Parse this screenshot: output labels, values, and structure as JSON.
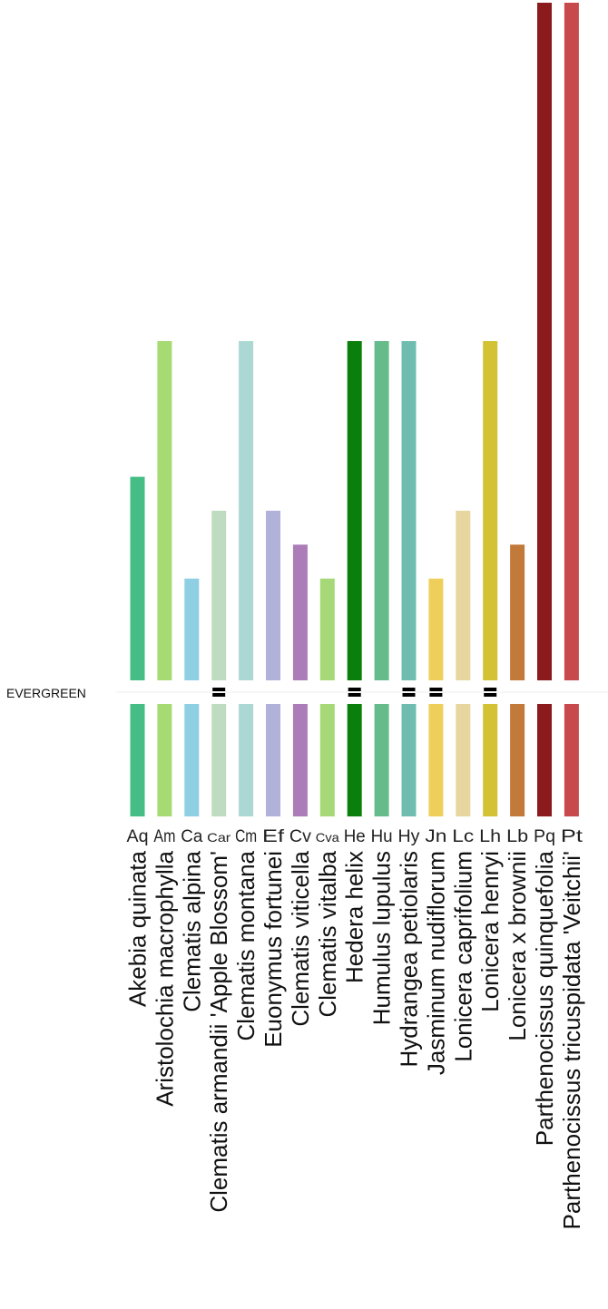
{
  "chart_data": {
    "type": "bar",
    "row_label": "EVERGREEN",
    "ylim": [
      0,
      10
    ],
    "grid": false,
    "legend": "none",
    "series": [
      {
        "abbr": "Aq",
        "name": "Akebia quinata",
        "value": 6,
        "evergreen": false,
        "color": "#45bd85"
      },
      {
        "abbr": "Am",
        "name": "Aristolochia macrophylla",
        "value": 10,
        "evergreen": false,
        "color": "#a6db74"
      },
      {
        "abbr": "Ca",
        "name": "Clematis alpina",
        "value": 3,
        "evergreen": false,
        "color": "#8ecfe4"
      },
      {
        "abbr": "Car",
        "name": "Clematis armandii 'Apple Blossom'",
        "value": 5,
        "evergreen": true,
        "color": "#c0dcc0"
      },
      {
        "abbr": "Cm",
        "name": "Clematis montana",
        "value": 10,
        "evergreen": false,
        "color": "#acd8d3"
      },
      {
        "abbr": "Ef",
        "name": "Euonymus fortunei",
        "value": 5,
        "evergreen": false,
        "color": "#b1b2d9"
      },
      {
        "abbr": "Cv",
        "name": "Clematis viticella",
        "value": 4,
        "evergreen": false,
        "color": "#ab7cb8"
      },
      {
        "abbr": "Cva",
        "name": "Clematis vitalba",
        "value": 3,
        "evergreen": false,
        "color": "#a6d877"
      },
      {
        "abbr": "He",
        "name": "Hedera helix",
        "value": 10,
        "evergreen": true,
        "color": "#0b7f0b"
      },
      {
        "abbr": "Hu",
        "name": "Humulus lupulus",
        "value": 10,
        "evergreen": false,
        "color": "#66bb8b"
      },
      {
        "abbr": "Hy",
        "name": "Hydrangea petiolaris",
        "value": 10,
        "evergreen": true,
        "color": "#6ebdb0"
      },
      {
        "abbr": "Jn",
        "name": "Jasminum nudiflorum",
        "value": 3,
        "evergreen": true,
        "color": "#efcf5c"
      },
      {
        "abbr": "Lc",
        "name": "Lonicera caprifolium",
        "value": 5,
        "evergreen": false,
        "color": "#e8d69f"
      },
      {
        "abbr": "Lh",
        "name": "Lonicera henryi",
        "value": 10,
        "evergreen": true,
        "color": "#d2c234"
      },
      {
        "abbr": "Lb",
        "name": "Lonicera x brownii",
        "value": 4,
        "evergreen": false,
        "color": "#c27a3a"
      },
      {
        "abbr": "Pq",
        "name": "Parthenocissus quinquefolia",
        "value": 20,
        "evergreen": false,
        "color": "#8b1a1d"
      },
      {
        "abbr": "Pt",
        "name": "Parthenocissus tricuspidata 'Veitchii'",
        "value": 20,
        "evergreen": false,
        "color": "#c8494b"
      }
    ]
  }
}
